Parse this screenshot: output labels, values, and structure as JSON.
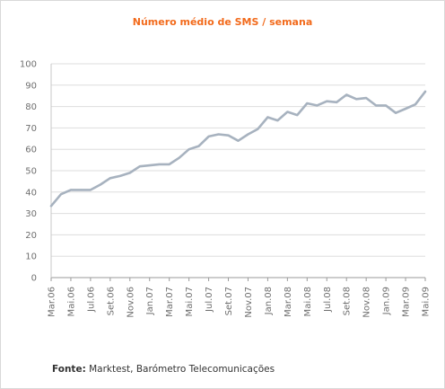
{
  "chart_data": {
    "type": "line",
    "title": "Número médio de SMS / semana",
    "xlabel": "",
    "ylabel": "",
    "ylim": [
      0,
      100
    ],
    "y_ticks": [
      0,
      10,
      20,
      30,
      40,
      50,
      60,
      70,
      80,
      90,
      100
    ],
    "grid": true,
    "legend": "none",
    "x_tick_labels": [
      "Mar.06",
      "Mai.06",
      "Jul.06",
      "Set.06",
      "Nov.06",
      "Jan.07",
      "Mar.07",
      "Mai.07",
      "Jul.07",
      "Set.07",
      "Nov.07",
      "Jan.08",
      "Mar.08",
      "Mai.08",
      "Jul.08",
      "Set.08",
      "Nov.08",
      "Jan.09",
      "Mar.09",
      "Mai.09"
    ],
    "x": [
      "Mar.06",
      "Abr.06",
      "Mai.06",
      "Jun.06",
      "Jul.06",
      "Ago.06",
      "Set.06",
      "Out.06",
      "Nov.06",
      "Dez.06",
      "Jan.07",
      "Fev.07",
      "Mar.07",
      "Abr.07",
      "Mai.07",
      "Jun.07",
      "Jul.07",
      "Ago.07",
      "Set.07",
      "Out.07",
      "Nov.07",
      "Dez.07",
      "Jan.08",
      "Fev.08",
      "Mar.08",
      "Abr.08",
      "Mai.08",
      "Jun.08",
      "Jul.08",
      "Ago.08",
      "Set.08",
      "Out.08",
      "Nov.08",
      "Dez.08",
      "Jan.09",
      "Fev.09",
      "Mar.09",
      "Abr.09",
      "Mai.09"
    ],
    "series": [
      {
        "values": [
          33.5,
          39,
          41,
          41,
          41,
          43.5,
          46.5,
          47.5,
          49,
          52,
          52.5,
          53,
          53,
          56,
          60,
          61.5,
          66,
          67,
          66.5,
          64,
          67,
          69.5,
          75,
          73.5,
          77.5,
          76,
          81.5,
          80.5,
          82.5,
          82,
          85.5,
          83.5,
          84,
          80.5,
          80.5,
          77,
          79,
          81,
          87
        ],
        "color": "#a7b2bf"
      }
    ]
  },
  "source": {
    "label": "Fonte:",
    "text": " Marktest, Barómetro Telecomunicações"
  }
}
